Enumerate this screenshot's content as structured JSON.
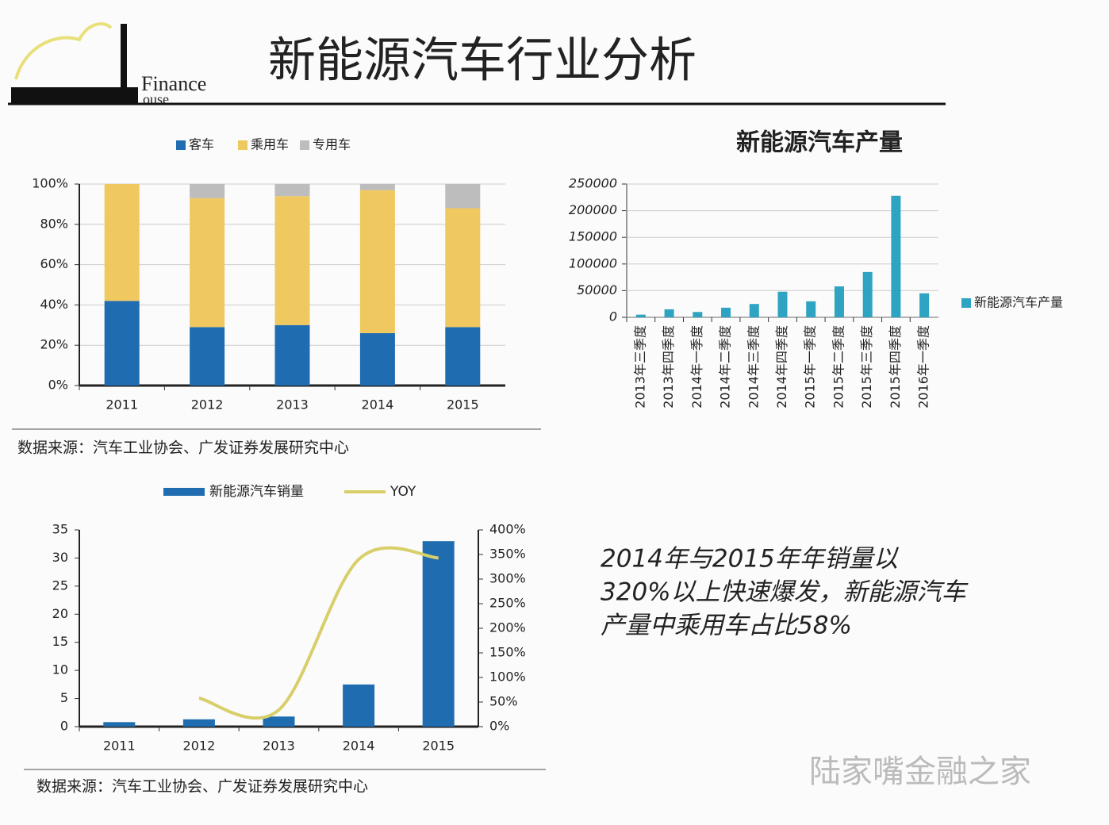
{
  "header": {
    "title": "新能源汽车行业分析",
    "logo": [
      "Finance",
      "ouse"
    ]
  },
  "summary": [
    "2014年与2015年年销量以",
    "320%以上快速爆发，新能源汽车",
    "产量中乘用车占比58%"
  ],
  "watermark": "陆家嘴金融之家",
  "chart_data": [
    {
      "type": "stacked_bar",
      "legend": "top",
      "grid": true,
      "categories": [
        "2011",
        "2012",
        "2013",
        "2014",
        "2015"
      ],
      "series": [
        {
          "name": "客车",
          "color": "#1f6db0",
          "values": [
            42,
            29,
            30,
            26,
            29
          ]
        },
        {
          "name": "乘用车",
          "color": "#f0c860",
          "values": [
            58,
            64,
            64,
            71,
            59
          ]
        },
        {
          "name": "专用车",
          "color": "#bdbdbd",
          "values": [
            0,
            7,
            6,
            3,
            12
          ]
        }
      ],
      "ylim": [
        0,
        100
      ],
      "yticks": [
        {
          "value": 0,
          "label": "0%"
        },
        {
          "value": 20,
          "label": "20%"
        },
        {
          "value": 40,
          "label": "40%"
        },
        {
          "value": 60,
          "label": "60%"
        },
        {
          "value": 80,
          "label": "80%"
        },
        {
          "value": 100,
          "label": "100%"
        }
      ],
      "source": "数据来源：汽车工业协会、广发证券发展研究中心"
    },
    {
      "type": "bar",
      "legend": "right",
      "grid": true,
      "title": "新能源汽车产量",
      "categories": [
        "2013年三季度",
        "2013年四季度",
        "2014年一季度",
        "2014年二季度",
        "2014年三季度",
        "2014年四季度",
        "2015年一季度",
        "2015年二季度",
        "2015年三季度",
        "2015年四季度",
        "2016年一季度"
      ],
      "series": [
        {
          "name": "新能源汽车产量",
          "color": "#2ea3c2",
          "values": [
            5000,
            15000,
            10000,
            18000,
            25000,
            48000,
            30000,
            58000,
            85000,
            228000,
            45000
          ]
        }
      ],
      "ylim": [
        0,
        250000
      ],
      "yticks": [
        0,
        50000,
        100000,
        150000,
        200000,
        250000
      ]
    },
    {
      "type": "bar_line",
      "legend": "top",
      "grid": false,
      "categories": [
        "2011",
        "2012",
        "2013",
        "2014",
        "2015"
      ],
      "series": [
        {
          "name": "新能源汽车销量",
          "color": "#1f6db0",
          "values": [
            0.8,
            1.3,
            1.8,
            7.5,
            33
          ]
        },
        {
          "name": "YOY",
          "color": "#d8cf6a",
          "axis": "y2",
          "values": [
            null,
            58,
            34,
            340,
            343
          ]
        }
      ],
      "ylim": [
        0,
        35
      ],
      "yticks": [
        0,
        5,
        10,
        15,
        20,
        25,
        30,
        35
      ],
      "y2lim": [
        0,
        400
      ],
      "y2ticks": [
        {
          "value": 0,
          "label": "0%"
        },
        {
          "value": 50,
          "label": "50%"
        },
        {
          "value": 100,
          "label": "100%"
        },
        {
          "value": 150,
          "label": "150%"
        },
        {
          "value": 200,
          "label": "200%"
        },
        {
          "value": 250,
          "label": "250%"
        },
        {
          "value": 300,
          "label": "300%"
        },
        {
          "value": 350,
          "label": "350%"
        },
        {
          "value": 400,
          "label": "400%"
        }
      ],
      "source": "数据来源：汽车工业协会、广发证券发展研究中心"
    }
  ]
}
